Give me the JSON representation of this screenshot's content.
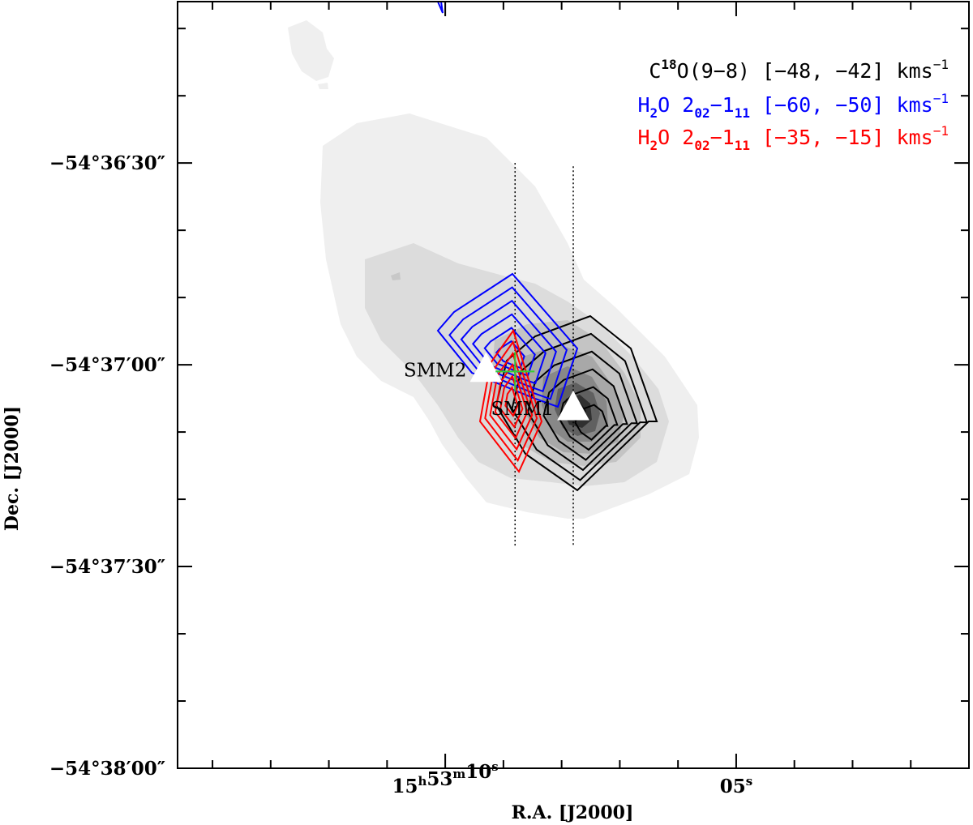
{
  "chart_data": {
    "type": "contour",
    "xlabel": "R.A. [J2000]",
    "ylabel": "Dec. [J2000]",
    "x_ticks": [
      {
        "value": 10,
        "h": "15",
        "m": "53",
        "s": "10",
        "label": "15h53m10s"
      },
      {
        "value": 5,
        "h": "",
        "m": "",
        "s": "05",
        "label": "05s"
      }
    ],
    "y_ticks": [
      {
        "value": -30,
        "label": "−54°36′30″"
      },
      {
        "value": -60,
        "label": "−54°37′00″"
      },
      {
        "value": -90,
        "label": "−54°37′30″"
      },
      {
        "value": -120,
        "label": "−54°38′00″"
      }
    ],
    "xlim": [
      14.6,
      1.0
    ],
    "ylim": [
      -120.0,
      -6.0
    ],
    "legend": [
      {
        "name": "C18O(9−8) [−48, −42] kms−1",
        "color": "#000000",
        "mol": "C",
        "sup": "18",
        "rest": "O(9−8) [−48, −42] kms",
        "unit_sup": "−1"
      },
      {
        "name": "H2O 202−111 [−60, −50] kms−1",
        "color": "#0000ff",
        "mol": "H",
        "sub1": "2",
        "mid": "O 2",
        "sub2": "02",
        "dash": "−1",
        "sub3": "11",
        "range": " [−60, −50] kms",
        "unit_sup": "−1"
      },
      {
        "name": "H2O 202−111 [−35, −15] kms−1",
        "color": "#ff0000",
        "mol": "H",
        "sub1": "2",
        "mid": "O 2",
        "sub2": "02",
        "dash": "−1",
        "sub3": "11",
        "range": " [−35, −15] kms",
        "unit_sup": "−1"
      }
    ],
    "sources": [
      {
        "name": "SMM2",
        "x": 9.3,
        "y": -60.8
      },
      {
        "name": "SMM1",
        "x": 7.8,
        "y": -66.5
      }
    ],
    "cross": {
      "x": 8.8,
      "y": -61.0,
      "color": "#33cc33"
    },
    "dotted_lines": [
      {
        "x": 8.8,
        "y1": -30.0,
        "y2": -87.0
      },
      {
        "x": 7.8,
        "y1": -30.5,
        "y2": -87.0
      }
    ],
    "contours": {
      "C18O_black": {
        "center_x": 7.6,
        "center_y": -67.0,
        "levels": 6
      },
      "H2O_blue": {
        "center_x": 9.0,
        "center_y": -57.5,
        "levels": 6
      },
      "H2O_red": {
        "center_x": 8.9,
        "center_y": -64.0,
        "levels": 6
      }
    },
    "grayscale_map": "C18O(9−8) integrated intensity, peak near SMM1",
    "legend_position": "top-right",
    "grid": false
  }
}
